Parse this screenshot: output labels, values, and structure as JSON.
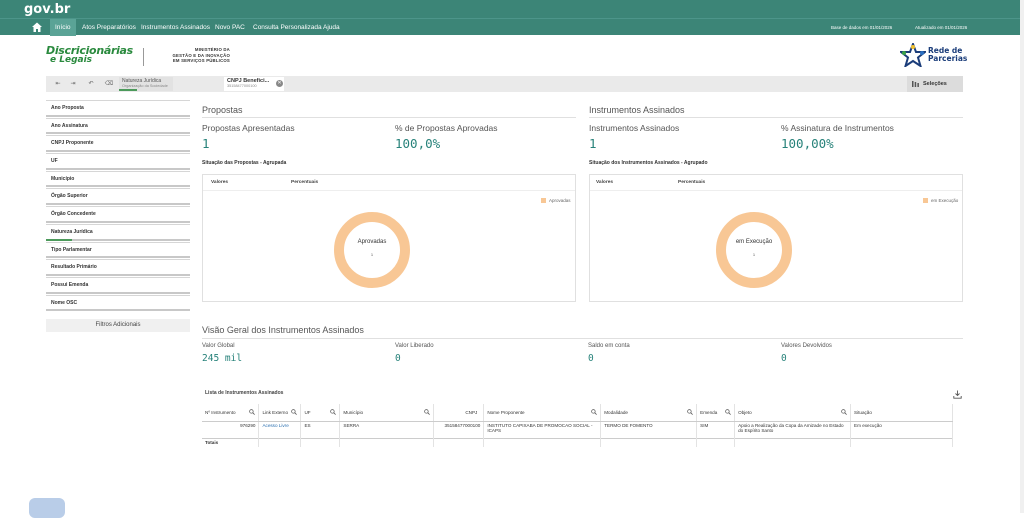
{
  "gov": {
    "logo": "gov.br"
  },
  "nav": {
    "items": [
      "Início",
      "Atos Preparatórios",
      "Instrumentos Assinados",
      "Novo PAC",
      "Consulta Personalizada",
      "Ajuda"
    ],
    "base_dados": "Base de dados em 01/01/2026",
    "atualizado": "Atualizado em 01/01/2026"
  },
  "brand": {
    "line1": "Discricionárias",
    "line2": "e Legais"
  },
  "ministerio": {
    "l1": "MINISTÉRIO DA",
    "l2": "GESTÃO E DA INOVAÇÃO",
    "l3": "EM SERVIÇOS PÚBLICOS"
  },
  "rede": {
    "l1": "Rede de",
    "l2": "Parcerias"
  },
  "selections": {
    "chip1_title": "Natureza Jurídica",
    "chip1_value": "Organização da Sociedade",
    "chip2_title": "CNPJ Benefici...",
    "chip2_value": "35158477000100",
    "selecoes_label": "Seleções"
  },
  "filters": [
    "Ano Proposta",
    "Ano Assinatura",
    "CNPJ Proponente",
    "UF",
    "Município",
    "Órgão Superior",
    "Órgão Concedente",
    "Natureza Jurídica",
    "Tipo Parlamentar",
    "Resultado Primário",
    "Possui Emenda",
    "Nome OSC"
  ],
  "filters_add": "Filtros Adicionais",
  "propostas": {
    "title": "Propostas",
    "kpi1_label": "Propostas Apresentadas",
    "kpi1_value": "1",
    "kpi2_label": "% de Propostas Aprovadas",
    "kpi2_value": "100,0%",
    "chart_title": "Situação das Propostas - Agrupada",
    "col_valores": "Valores",
    "col_percentuais": "Percentuais",
    "legend": "Aprovadas",
    "center_label": "Aprovadas",
    "center_value": "1"
  },
  "instrumentos": {
    "title": "Instrumentos Assinados",
    "kpi1_label": "Instrumentos Assinados",
    "kpi1_value": "1",
    "kpi2_label": "% Assinatura de Instrumentos",
    "kpi2_value": "100,00%",
    "chart_title": "Situação dos Instrumentos Assinados - Agrupado",
    "col_valores": "Valores",
    "col_percentuais": "Percentuais",
    "legend": "em Execução",
    "center_label": "em Execução",
    "center_value": "1"
  },
  "visao": {
    "title": "Visão Geral dos Instrumentos Assinados",
    "k1_label": "Valor Global",
    "k1_value": "245 mil",
    "k2_label": "Valor Liberado",
    "k2_value": "0",
    "k3_label": "Saldo em conta",
    "k3_value": "0",
    "k4_label": "Valores Devolvidos",
    "k4_value": "0"
  },
  "table": {
    "title": "Lista de Instrumentos Assinados",
    "headers": [
      "Nº Instrumento",
      "Link Externo",
      "UF",
      "Município",
      "CNPJ",
      "Nome Proponente",
      "Modalidade",
      "Emenda",
      "Objeto",
      "Situação"
    ],
    "row": [
      "976290",
      "Acesso Livre",
      "ES",
      "SERRA",
      "35158477000100",
      "INSTITUTO CAPIXABA DE PROMOCAO SOCIAL - ICAPS",
      "TERMO DE FOMENTO",
      "SIM",
      "Apoio a Realização da Copa da Amizade no Estado do Espírito Santo",
      "Em execução"
    ],
    "totals": "Totais"
  },
  "colors": {
    "accent": "#3c8577",
    "kpi": "#27827a",
    "donut": "#f8c795"
  },
  "chart_data": [
    {
      "type": "pie",
      "title": "Situação das Propostas - Agrupada",
      "categories": [
        "Aprovadas"
      ],
      "values": [
        1
      ]
    },
    {
      "type": "pie",
      "title": "Situação dos Instrumentos Assinados - Agrupado",
      "categories": [
        "em Execução"
      ],
      "values": [
        1
      ]
    }
  ]
}
